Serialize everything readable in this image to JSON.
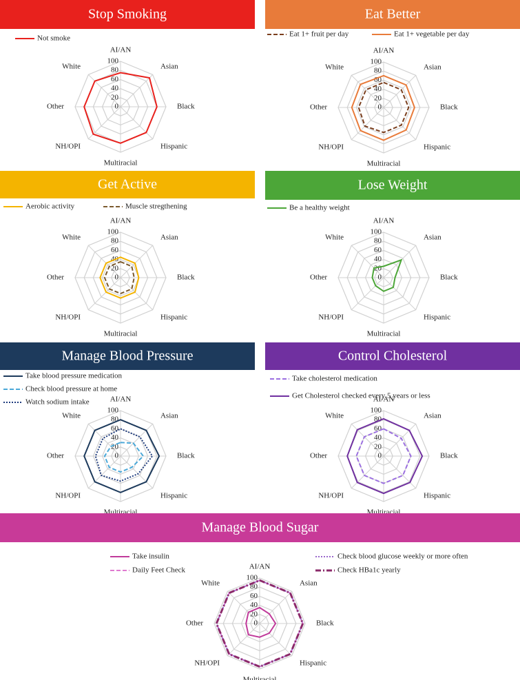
{
  "chart_data": [
    {
      "type": "radar",
      "title": "Stop Smoking",
      "categories": [
        "AI/AN",
        "Asian",
        "Black",
        "Hispanic",
        "Multiracial",
        "NH/OPI",
        "Other",
        "White"
      ],
      "rlim": [
        0,
        100
      ],
      "rticks": [
        0,
        20,
        40,
        60,
        80,
        100
      ],
      "series": [
        {
          "name": "Not smoke",
          "color": "#e8211d",
          "line_style": "solid",
          "values": [
            75,
            90,
            80,
            80,
            80,
            85,
            80,
            80
          ]
        }
      ]
    },
    {
      "type": "radar",
      "title": "Eat Better",
      "categories": [
        "AI/AN",
        "Asian",
        "Black",
        "Hispanic",
        "Multiracial",
        "NH/OPI",
        "Other",
        "White"
      ],
      "rlim": [
        0,
        100
      ],
      "rticks": [
        0,
        20,
        40,
        60,
        80,
        100
      ],
      "series": [
        {
          "name": "Eat 1+ fruit per day",
          "color": "#7b3f1e",
          "line_style": "dashed",
          "values": [
            55,
            55,
            55,
            55,
            55,
            58,
            55,
            55
          ]
        },
        {
          "name": "Eat 1+ vegetable per day",
          "color": "#e87b3a",
          "line_style": "solid",
          "values": [
            70,
            70,
            68,
            70,
            72,
            72,
            70,
            72
          ]
        }
      ]
    },
    {
      "type": "radar",
      "title": "Get Active",
      "categories": [
        "AI/AN",
        "Asian",
        "Black",
        "Hispanic",
        "Multiracial",
        "NH/OPI",
        "Other",
        "White"
      ],
      "rlim": [
        0,
        100
      ],
      "rticks": [
        0,
        20,
        40,
        60,
        80,
        100
      ],
      "series": [
        {
          "name": "Aerobic activity",
          "color": "#f4b400",
          "line_style": "solid",
          "values": [
            45,
            45,
            40,
            45,
            45,
            45,
            45,
            45
          ]
        },
        {
          "name": "Muscle stregthening",
          "color": "#7b5a2e",
          "line_style": "dashed",
          "values": [
            35,
            35,
            30,
            35,
            35,
            35,
            35,
            35
          ]
        }
      ]
    },
    {
      "type": "radar",
      "title": "Lose Weight",
      "categories": [
        "AI/AN",
        "Asian",
        "Black",
        "Hispanic",
        "Multiracial",
        "NH/OPI",
        "Other",
        "White"
      ],
      "rlim": [
        0,
        100
      ],
      "rticks": [
        0,
        20,
        40,
        60,
        80,
        100
      ],
      "series": [
        {
          "name": "Be a healthy weight",
          "color": "#4ca638",
          "line_style": "solid",
          "values": [
            25,
            55,
            25,
            30,
            30,
            25,
            25,
            30
          ]
        }
      ]
    },
    {
      "type": "radar",
      "title": "Manage Blood Pressure",
      "categories": [
        "AI/AN",
        "Asian",
        "Black",
        "Hispanic",
        "Multiracial",
        "NH/OPI",
        "Other",
        "White"
      ],
      "rlim": [
        0,
        100
      ],
      "rticks": [
        0,
        20,
        40,
        60,
        80,
        100
      ],
      "series": [
        {
          "name": "Take blood pressure medication",
          "color": "#1d3a5c",
          "line_style": "solid",
          "values": [
            80,
            80,
            85,
            80,
            80,
            80,
            80,
            80
          ]
        },
        {
          "name": "Check blood pressure at home",
          "color": "#4aa8d8",
          "line_style": "dashed",
          "values": [
            30,
            40,
            50,
            35,
            35,
            35,
            35,
            30
          ]
        },
        {
          "name": "Watch sodium intake",
          "color": "#1d3a7c",
          "line_style": "dotted",
          "values": [
            60,
            60,
            70,
            55,
            55,
            60,
            55,
            55
          ]
        }
      ]
    },
    {
      "type": "radar",
      "title": "Control Cholesterol",
      "categories": [
        "AI/AN",
        "Asian",
        "Black",
        "Hispanic",
        "Multiracial",
        "NH/OPI",
        "Other",
        "White"
      ],
      "rlim": [
        0,
        100
      ],
      "rticks": [
        0,
        20,
        40,
        60,
        80,
        100
      ],
      "series": [
        {
          "name": "Take cholesterol medication",
          "color": "#9b6fe0",
          "line_style": "dashed",
          "values": [
            60,
            55,
            60,
            60,
            60,
            60,
            60,
            60
          ]
        },
        {
          "name": "Get Cholesterol checked every 5 years or less",
          "color": "#7030a0",
          "line_style": "solid",
          "values": [
            82,
            80,
            85,
            82,
            82,
            82,
            80,
            82
          ]
        }
      ]
    },
    {
      "type": "radar",
      "title": "Manage Blood Sugar",
      "categories": [
        "AI/AN",
        "Asian",
        "Black",
        "Hispanic",
        "Multiracial",
        "NH/OPI",
        "Other",
        "White"
      ],
      "rlim": [
        0,
        100
      ],
      "rticks": [
        0,
        20,
        40,
        60,
        80,
        100
      ],
      "series": [
        {
          "name": "Take insulin",
          "color": "#c03a9a",
          "line_style": "solid",
          "values": [
            35,
            30,
            35,
            30,
            30,
            35,
            30,
            35
          ]
        },
        {
          "name": "Daily Feet Check",
          "color": "#e07ad0",
          "line_style": "dashed",
          "values": [
            95,
            95,
            95,
            95,
            95,
            95,
            95,
            95
          ]
        },
        {
          "name": "Check blood glucose weekly or more often",
          "color": "#9966cc",
          "line_style": "dotted",
          "values": [
            95,
            95,
            95,
            95,
            95,
            95,
            95,
            95
          ]
        },
        {
          "name": "Check HBa1c yearly",
          "color": "#8b2a6a",
          "line_style": "dashdot",
          "values": [
            95,
            95,
            95,
            95,
            95,
            95,
            95,
            95
          ]
        }
      ]
    }
  ]
}
